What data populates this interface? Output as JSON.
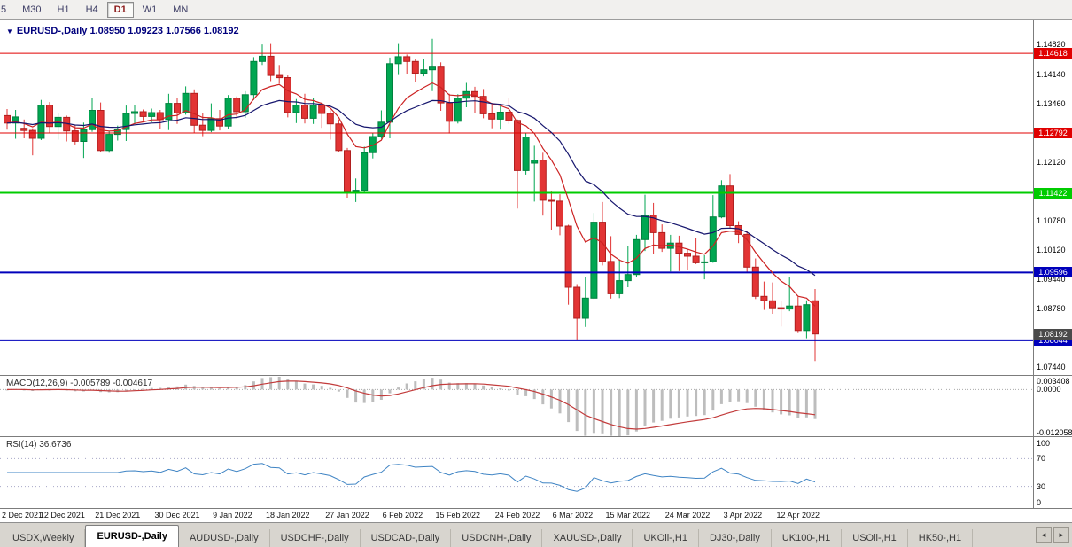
{
  "toolbar": {
    "timeframes": [
      {
        "label": "5",
        "active": false
      },
      {
        "label": "M30",
        "active": false
      },
      {
        "label": "H1",
        "active": false
      },
      {
        "label": "H4",
        "active": false
      },
      {
        "label": "D1",
        "active": true
      },
      {
        "label": "W1",
        "active": false
      },
      {
        "label": "MN",
        "active": false
      }
    ]
  },
  "chart": {
    "collapse_icon": "▼",
    "title": "EURUSD-,Daily 1.08950 1.09223 1.07566 1.08192",
    "macd_label": "MACD(12,26,9) -0.005789 -0.004617",
    "rsi_label": "RSI(14) 36.6736"
  },
  "chart_data": {
    "type": "candlestick",
    "symbol": "EURUSD-",
    "period": "Daily",
    "open": "1.08950",
    "high": "1.09223",
    "low": "1.07566",
    "close": "1.08192",
    "price_range": [
      1.0725,
      1.1535
    ],
    "y_ticks": [
      "1.14820",
      "1.14140",
      "1.13460",
      "1.12780",
      "1.12120",
      "1.11460",
      "1.10780",
      "1.10120",
      "1.09440",
      "1.08780",
      "1.08120",
      "1.07440"
    ],
    "hlines": [
      {
        "price": 1.14618,
        "label": "1.14618",
        "color": "#e00000",
        "width": 1
      },
      {
        "price": 1.12792,
        "label": "1.12792",
        "color": "#e00000",
        "width": 1
      },
      {
        "price": 1.11422,
        "label": "1.11422",
        "color": "#00cc00",
        "width": 2
      },
      {
        "price": 1.09596,
        "label": "1.09596",
        "color": "#0000bb",
        "width": 2
      },
      {
        "price": 1.08044,
        "label": "1.08044",
        "color": "#0000bb",
        "width": 2
      }
    ],
    "current_price": {
      "price": 1.08192,
      "label": "1.08192",
      "color": "#4a4a4a"
    },
    "colors": {
      "up": "#00a651",
      "up_border": "#00813e",
      "down": "#e23434",
      "down_border": "#b01f1f",
      "ma_fast": "#cc2222",
      "ma_slow": "#16166e",
      "macd_hist": "#bdbdbd",
      "macd_signal": "#c23b3b",
      "rsi": "#3f84c4",
      "level_line": "#a8a8c8"
    },
    "moving_averages": [
      {
        "type": "ema",
        "period": 8,
        "color": "#cc2222"
      },
      {
        "type": "ema",
        "period": 21,
        "color": "#16166e"
      }
    ],
    "candles": [
      [
        1.1319,
        1.1334,
        1.1287,
        1.1302
      ],
      [
        1.1302,
        1.1332,
        1.1266,
        1.1316
      ],
      [
        1.129,
        1.131,
        1.1267,
        1.1285
      ],
      [
        1.1285,
        1.129,
        1.1228,
        1.1267
      ],
      [
        1.1267,
        1.1355,
        1.1263,
        1.1343
      ],
      [
        1.1343,
        1.135,
        1.128,
        1.1294
      ],
      [
        1.1294,
        1.1324,
        1.1264,
        1.1315
      ],
      [
        1.1315,
        1.1319,
        1.126,
        1.1284
      ],
      [
        1.1284,
        1.1297,
        1.1253,
        1.126
      ],
      [
        1.126,
        1.1303,
        1.1222,
        1.1287
      ],
      [
        1.1287,
        1.136,
        1.1282,
        1.1331
      ],
      [
        1.1331,
        1.1349,
        1.1236,
        1.1239
      ],
      [
        1.1239,
        1.1283,
        1.1234,
        1.1276
      ],
      [
        1.1276,
        1.1296,
        1.1262,
        1.1287
      ],
      [
        1.1287,
        1.1342,
        1.1261,
        1.1324
      ],
      [
        1.1324,
        1.1343,
        1.13,
        1.1328
      ],
      [
        1.1328,
        1.1333,
        1.1308,
        1.1317
      ],
      [
        1.1317,
        1.1335,
        1.1304,
        1.1326
      ],
      [
        1.1326,
        1.1332,
        1.1288,
        1.131
      ],
      [
        1.131,
        1.1369,
        1.1286,
        1.1347
      ],
      [
        1.1347,
        1.136,
        1.13,
        1.1325
      ],
      [
        1.1325,
        1.1386,
        1.1321,
        1.137
      ],
      [
        1.137,
        1.1379,
        1.1279,
        1.1297
      ],
      [
        1.1297,
        1.1324,
        1.1272,
        1.1285
      ],
      [
        1.1285,
        1.1347,
        1.1281,
        1.1312
      ],
      [
        1.1312,
        1.1332,
        1.1285,
        1.1295
      ],
      [
        1.1295,
        1.1366,
        1.1288,
        1.1359
      ],
      [
        1.1359,
        1.1363,
        1.1313,
        1.1328
      ],
      [
        1.1328,
        1.1375,
        1.1314,
        1.1367
      ],
      [
        1.1367,
        1.1453,
        1.1355,
        1.1443
      ],
      [
        1.1443,
        1.1482,
        1.1435,
        1.1455
      ],
      [
        1.1455,
        1.1483,
        1.1398,
        1.1411
      ],
      [
        1.1411,
        1.1435,
        1.1392,
        1.1406
      ],
      [
        1.1406,
        1.1411,
        1.1315,
        1.1326
      ],
      [
        1.1326,
        1.1357,
        1.1302,
        1.1343
      ],
      [
        1.1343,
        1.1369,
        1.1301,
        1.1313
      ],
      [
        1.1313,
        1.136,
        1.13,
        1.1343
      ],
      [
        1.1343,
        1.1349,
        1.1291,
        1.1324
      ],
      [
        1.1324,
        1.1331,
        1.1264,
        1.13
      ],
      [
        1.13,
        1.131,
        1.1235,
        1.1239
      ],
      [
        1.1239,
        1.1245,
        1.1131,
        1.1144
      ],
      [
        1.1144,
        1.1175,
        1.1121,
        1.1148
      ],
      [
        1.1148,
        1.1248,
        1.1141,
        1.1234
      ],
      [
        1.1234,
        1.1279,
        1.1221,
        1.1271
      ],
      [
        1.1271,
        1.1331,
        1.1266,
        1.1304
      ],
      [
        1.1304,
        1.1452,
        1.1267,
        1.1438
      ],
      [
        1.1438,
        1.1483,
        1.1412,
        1.1454
      ],
      [
        1.1454,
        1.1459,
        1.1414,
        1.1443
      ],
      [
        1.1443,
        1.1449,
        1.1396,
        1.1416
      ],
      [
        1.1416,
        1.1448,
        1.1409,
        1.1424
      ],
      [
        1.1424,
        1.1495,
        1.1375,
        1.143
      ],
      [
        1.143,
        1.1441,
        1.133,
        1.1348
      ],
      [
        1.1348,
        1.1369,
        1.1278,
        1.1306
      ],
      [
        1.1306,
        1.1368,
        1.1301,
        1.1359
      ],
      [
        1.1359,
        1.1394,
        1.1338,
        1.1374
      ],
      [
        1.1374,
        1.1385,
        1.1325,
        1.1363
      ],
      [
        1.1363,
        1.138,
        1.1313,
        1.1323
      ],
      [
        1.1323,
        1.1348,
        1.129,
        1.1311
      ],
      [
        1.1311,
        1.1344,
        1.1287,
        1.1327
      ],
      [
        1.1327,
        1.136,
        1.13,
        1.1308
      ],
      [
        1.1308,
        1.131,
        1.1106,
        1.1193
      ],
      [
        1.1193,
        1.1279,
        1.1184,
        1.127
      ],
      [
        1.121,
        1.125,
        1.1122,
        1.1217
      ],
      [
        1.1217,
        1.1234,
        1.109,
        1.1125
      ],
      [
        1.1125,
        1.1145,
        1.1058,
        1.1123
      ],
      [
        1.1123,
        1.1139,
        1.1045,
        1.1066
      ],
      [
        1.1066,
        1.1069,
        1.0886,
        1.0926
      ],
      [
        1.0926,
        1.0933,
        1.0806,
        1.0855
      ],
      [
        1.0855,
        1.095,
        1.0835,
        1.0901
      ],
      [
        1.0901,
        1.1096,
        1.0899,
        1.1075
      ],
      [
        1.1075,
        1.1121,
        1.0976,
        1.0985
      ],
      [
        1.0985,
        1.1043,
        1.09,
        1.0911
      ],
      [
        1.0911,
        1.099,
        1.0901,
        1.0941
      ],
      [
        1.0941,
        1.102,
        1.0926,
        1.0955
      ],
      [
        1.0955,
        1.1046,
        1.095,
        1.1035
      ],
      [
        1.1035,
        1.1138,
        1.1009,
        1.1091
      ],
      [
        1.1091,
        1.1119,
        1.1003,
        1.1051
      ],
      [
        1.1051,
        1.107,
        1.1007,
        1.1015
      ],
      [
        1.1015,
        1.1046,
        1.0962,
        1.1027
      ],
      [
        1.1027,
        1.1044,
        1.0963,
        1.1004
      ],
      [
        1.1004,
        1.1014,
        1.0965,
        1.0997
      ],
      [
        1.0997,
        1.1039,
        1.0979,
        1.0982
      ],
      [
        1.0982,
        1.0999,
        1.0944,
        1.0984
      ],
      [
        1.0984,
        1.1137,
        1.0982,
        1.1087
      ],
      [
        1.1087,
        1.1171,
        1.1084,
        1.1158
      ],
      [
        1.1158,
        1.1185,
        1.1061,
        1.1067
      ],
      [
        1.1067,
        1.1077,
        1.1027,
        1.1047
      ],
      [
        1.1047,
        1.1055,
        1.0961,
        1.0972
      ],
      [
        1.0972,
        1.0992,
        1.0899,
        1.0905
      ],
      [
        1.0905,
        1.0939,
        1.0874,
        1.0895
      ],
      [
        1.0895,
        1.0937,
        1.0865,
        1.0879
      ],
      [
        1.0879,
        1.0895,
        1.0836,
        1.0876
      ],
      [
        1.0876,
        1.095,
        1.0871,
        1.0883
      ],
      [
        1.0883,
        1.0904,
        1.0821,
        1.0827
      ],
      [
        1.0827,
        1.0896,
        1.0809,
        1.0886
      ],
      [
        1.0895,
        1.0922,
        1.0757,
        1.0819
      ]
    ],
    "date_labels": [
      {
        "text": "2 Dec 2021",
        "index": 0
      },
      {
        "text": "12 Dec 2021",
        "index": 6.5
      },
      {
        "text": "21 Dec 2021",
        "index": 13
      },
      {
        "text": "30 Dec 2021",
        "index": 20
      },
      {
        "text": "9 Jan 2022",
        "index": 26.5
      },
      {
        "text": "18 Jan 2022",
        "index": 33
      },
      {
        "text": "27 Jan 2022",
        "index": 40
      },
      {
        "text": "6 Feb 2022",
        "index": 46.5
      },
      {
        "text": "15 Feb 2022",
        "index": 53
      },
      {
        "text": "24 Feb 2022",
        "index": 60
      },
      {
        "text": "6 Mar 2022",
        "index": 66.5
      },
      {
        "text": "15 Mar 2022",
        "index": 73
      },
      {
        "text": "24 Mar 2022",
        "index": 80
      },
      {
        "text": "3 Apr 2022",
        "index": 86.5
      },
      {
        "text": "12 Apr 2022",
        "index": 93
      }
    ],
    "indicators": {
      "macd": {
        "label": "MACD(12,26,9)",
        "values": [
          "-0.005789",
          "-0.004617"
        ],
        "scale": [
          "0.003408",
          "0.0000",
          "-0.012058"
        ],
        "params": [
          12,
          26,
          9
        ]
      },
      "rsi": {
        "label": "RSI(14)",
        "value": "36.6736",
        "period": 14,
        "levels": [
          70,
          30
        ],
        "scale": [
          "100",
          "70",
          "30",
          "0"
        ]
      }
    }
  },
  "tabs": {
    "items": [
      {
        "label": "USDX,Weekly",
        "active": false
      },
      {
        "label": "EURUSD-,Daily",
        "active": true
      },
      {
        "label": "AUDUSD-,Daily",
        "active": false
      },
      {
        "label": "USDCHF-,Daily",
        "active": false
      },
      {
        "label": "USDCAD-,Daily",
        "active": false
      },
      {
        "label": "USDCNH-,Daily",
        "active": false
      },
      {
        "label": "XAUUSD-,Daily",
        "active": false
      },
      {
        "label": "UKOil-,H1",
        "active": false
      },
      {
        "label": "DJ30-,Daily",
        "active": false
      },
      {
        "label": "UK100-,H1",
        "active": false
      },
      {
        "label": "USOil-,H1",
        "active": false
      },
      {
        "label": "HK50-,H1",
        "active": false
      }
    ],
    "scroll_left": "◄",
    "scroll_right": "►"
  }
}
